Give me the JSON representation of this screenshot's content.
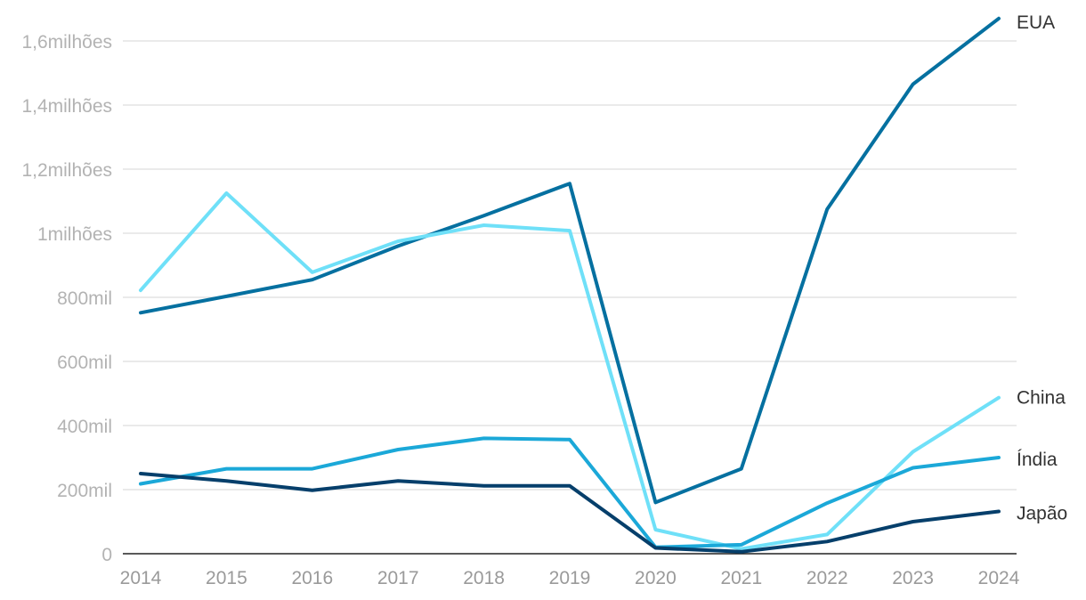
{
  "chart_data": {
    "type": "line",
    "title": "",
    "xlabel": "",
    "ylabel": "",
    "x": [
      "2014",
      "2015",
      "2016",
      "2017",
      "2018",
      "2019",
      "2020",
      "2021",
      "2022",
      "2023",
      "2024"
    ],
    "ylim": [
      0,
      1600000
    ],
    "yticks": [
      {
        "value": 0,
        "label": "0"
      },
      {
        "value": 200000,
        "label": "200mil"
      },
      {
        "value": 400000,
        "label": "400mil"
      },
      {
        "value": 600000,
        "label": "600mil"
      },
      {
        "value": 800000,
        "label": "800mil"
      },
      {
        "value": 1000000,
        "label": "1milhões"
      },
      {
        "value": 1200000,
        "label": "1,2milhões"
      },
      {
        "value": 1400000,
        "label": "1,4milhões"
      },
      {
        "value": 1600000,
        "label": "1,6milhões"
      }
    ],
    "grid": true,
    "legend": "end-of-line labels",
    "series": [
      {
        "name": "EUA",
        "color": "#0570a0",
        "values": [
          752000,
          803000,
          855000,
          960000,
          1055000,
          1155000,
          160000,
          265000,
          1075000,
          1465000,
          1670000
        ]
      },
      {
        "name": "China",
        "color": "#6fe0f8",
        "values": [
          822000,
          1125000,
          878000,
          975000,
          1025000,
          1008000,
          75000,
          15000,
          60000,
          318000,
          487000
        ]
      },
      {
        "name": "Índia",
        "color": "#1ba8d8",
        "values": [
          218000,
          265000,
          265000,
          325000,
          360000,
          356000,
          20000,
          28000,
          158000,
          268000,
          300000
        ]
      },
      {
        "name": "Japão",
        "color": "#063f6b",
        "values": [
          250000,
          227000,
          198000,
          227000,
          212000,
          212000,
          18000,
          6000,
          38000,
          100000,
          132000
        ]
      }
    ]
  }
}
